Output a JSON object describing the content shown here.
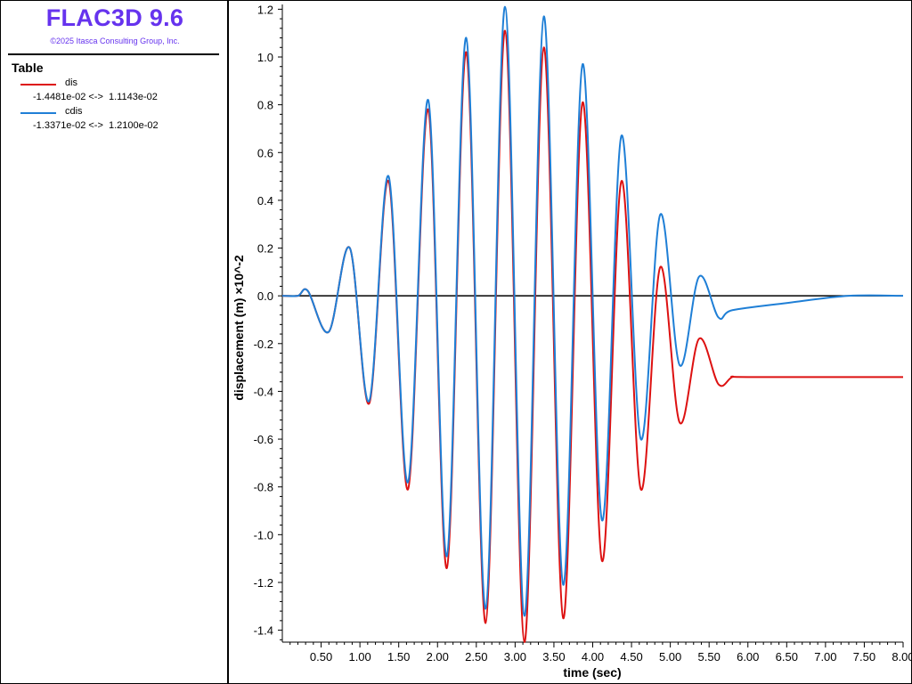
{
  "header": {
    "app_title": "FLAC3D 9.6",
    "copyright": "©2025 Itasca Consulting Group, Inc."
  },
  "legend": {
    "heading": "Table",
    "entries": [
      {
        "name": "dis",
        "color": "#dd1111",
        "range": "-1.4481e-02 <->  1.1143e-02"
      },
      {
        "name": "cdis",
        "color": "#1f7fd6",
        "range": "-1.3371e-02 <->  1.2100e-02"
      }
    ]
  },
  "chart_data": {
    "type": "line",
    "xlabel": "time (sec)",
    "ylabel": "displacement (m) ×10^-2",
    "xlim": [
      0,
      8.0
    ],
    "ylim": [
      -1.45,
      1.22
    ],
    "x_ticks": [
      "0.50",
      "1.00",
      "1.50",
      "2.00",
      "2.50",
      "3.00",
      "3.50",
      "4.00",
      "4.50",
      "5.00",
      "5.50",
      "6.00",
      "6.50",
      "7.00",
      "7.50",
      "8.00"
    ],
    "y_ticks": [
      "1.2",
      "1.0",
      "0.8",
      "0.6",
      "0.4",
      "0.2",
      "0.0",
      "-0.2",
      "-0.4",
      "-0.6",
      "-0.8",
      "-1.0",
      "-1.2",
      "-1.4"
    ],
    "zero_line": true,
    "grid": false,
    "series": [
      {
        "name": "dis",
        "color": "#dd1111",
        "points": [
          [
            0.0,
            0.0
          ],
          [
            0.2,
            0.0
          ],
          [
            0.33,
            0.02
          ],
          [
            0.6,
            -0.15
          ],
          [
            0.87,
            0.2
          ],
          [
            1.12,
            -0.45
          ],
          [
            1.37,
            0.48
          ],
          [
            1.62,
            -0.81
          ],
          [
            1.88,
            0.78
          ],
          [
            2.12,
            -1.14
          ],
          [
            2.37,
            1.02
          ],
          [
            2.62,
            -1.37
          ],
          [
            2.87,
            1.11
          ],
          [
            3.12,
            -1.45
          ],
          [
            3.37,
            1.04
          ],
          [
            3.62,
            -1.35
          ],
          [
            3.87,
            0.81
          ],
          [
            4.12,
            -1.11
          ],
          [
            4.37,
            0.48
          ],
          [
            4.62,
            -0.81
          ],
          [
            4.87,
            0.12
          ],
          [
            5.12,
            -0.53
          ],
          [
            5.37,
            -0.18
          ],
          [
            5.62,
            -0.37
          ],
          [
            5.8,
            -0.34
          ],
          [
            6.0,
            -0.34
          ],
          [
            8.0,
            -0.34
          ]
        ]
      },
      {
        "name": "cdis",
        "color": "#1f7fd6",
        "points": [
          [
            0.0,
            0.0
          ],
          [
            0.2,
            0.0
          ],
          [
            0.33,
            0.02
          ],
          [
            0.6,
            -0.15
          ],
          [
            0.87,
            0.2
          ],
          [
            1.12,
            -0.44
          ],
          [
            1.37,
            0.5
          ],
          [
            1.62,
            -0.78
          ],
          [
            1.88,
            0.82
          ],
          [
            2.12,
            -1.09
          ],
          [
            2.37,
            1.08
          ],
          [
            2.62,
            -1.31
          ],
          [
            2.87,
            1.21
          ],
          [
            3.12,
            -1.34
          ],
          [
            3.37,
            1.17
          ],
          [
            3.62,
            -1.21
          ],
          [
            3.87,
            0.97
          ],
          [
            4.12,
            -0.94
          ],
          [
            4.37,
            0.67
          ],
          [
            4.62,
            -0.6
          ],
          [
            4.87,
            0.34
          ],
          [
            5.12,
            -0.29
          ],
          [
            5.37,
            0.08
          ],
          [
            5.62,
            -0.09
          ],
          [
            5.8,
            -0.06
          ],
          [
            6.5,
            -0.03
          ],
          [
            7.3,
            0.0
          ],
          [
            8.0,
            0.0
          ]
        ]
      }
    ]
  }
}
